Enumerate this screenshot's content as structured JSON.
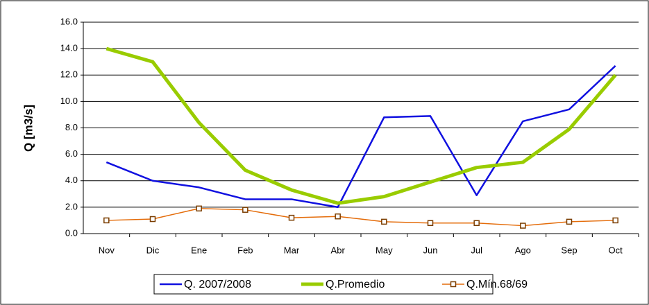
{
  "chart_data": {
    "type": "line",
    "y_label": "Q [m3/s]",
    "categories": [
      "Nov",
      "Dic",
      "Ene",
      "Feb",
      "Mar",
      "Abr",
      "May",
      "Jun",
      "Jul",
      "Ago",
      "Sep",
      "Oct"
    ],
    "series": [
      {
        "name": "Q. 2007/2008",
        "color": "#1010e0",
        "width": 2.5,
        "marker": false,
        "values": [
          5.4,
          4.0,
          3.5,
          2.6,
          2.6,
          2.0,
          8.8,
          8.9,
          2.9,
          8.5,
          9.4,
          12.7
        ]
      },
      {
        "name": "Q.Promedio",
        "color": "#99cc00",
        "width": 5,
        "marker": false,
        "values": [
          14.0,
          13.0,
          8.4,
          4.8,
          3.3,
          2.3,
          2.8,
          3.9,
          5.0,
          5.4,
          7.9,
          12.0
        ]
      },
      {
        "name": "Q.Mín.68/69",
        "color": "#e46c0a",
        "width": 1.5,
        "marker": true,
        "values": [
          1.0,
          1.1,
          1.9,
          1.8,
          1.2,
          1.3,
          0.9,
          0.8,
          0.8,
          0.6,
          0.9,
          1.0
        ]
      }
    ],
    "ylim": [
      0,
      16
    ],
    "yticks": [
      {
        "value": 0,
        "label": "0.0"
      },
      {
        "value": 2,
        "label": "2.0"
      },
      {
        "value": 4,
        "label": "4.0"
      },
      {
        "value": 6,
        "label": "6.0"
      },
      {
        "value": 8,
        "label": "8.0"
      },
      {
        "value": 10,
        "label": "10.0"
      },
      {
        "value": 12,
        "label": "12.0"
      },
      {
        "value": 14,
        "label": "14.0"
      },
      {
        "value": 16,
        "label": "16.0"
      }
    ],
    "grid": true,
    "legend": "bottom"
  }
}
